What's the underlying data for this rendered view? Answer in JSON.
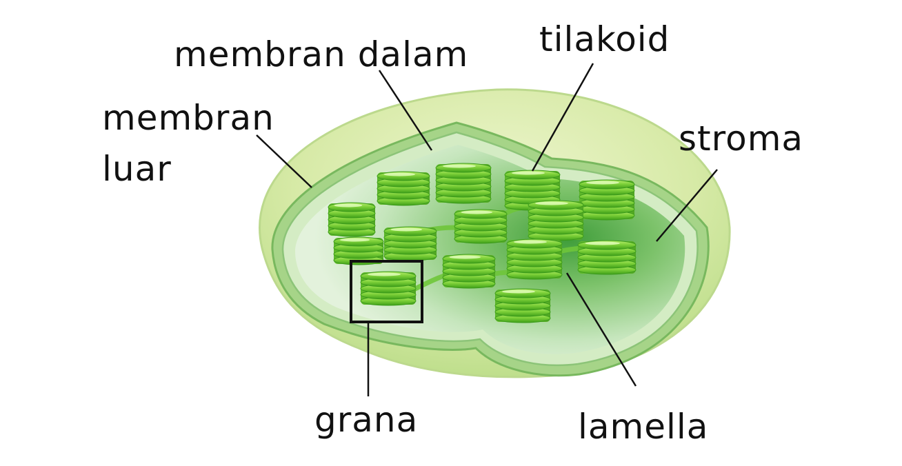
{
  "diagram": {
    "labels": {
      "membran_dalam": "membran dalam",
      "tilakoid": "tilakoid",
      "membran_luar_line1": "membran",
      "membran_luar_line2": "luar",
      "stroma": "stroma",
      "grana": "grana",
      "lamella": "lamella"
    },
    "colors": {
      "outer_membrane": "#d9ebb0",
      "inner_membrane": "#a9d68c",
      "stroma": "#c9e8bf",
      "thylakoid": "#7fd13a",
      "thylakoid_dark": "#3fa21c",
      "label_text": "#111111",
      "leader_line": "#111111"
    }
  }
}
